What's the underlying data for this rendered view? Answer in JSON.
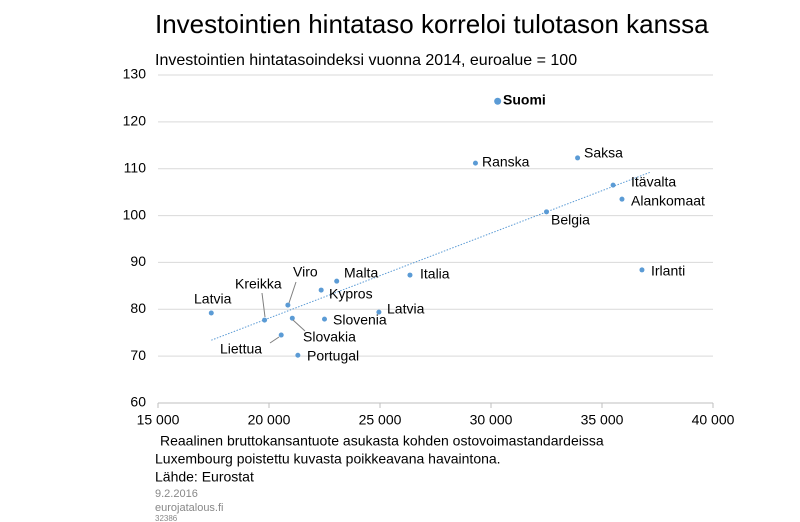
{
  "chart_data": {
    "type": "scatter",
    "title": "Investointien hintataso korreloi tulotason kanssa",
    "subtitle": "Investointien hintatasoindeksi vuonna 2014, euroalue = 100",
    "x_label": "Reaalinen bruttokansantuote asukasta kohden ostovoimastandardeissa",
    "notes": [
      "Luxembourg poistettu kuvasta poikkeavana havaintona.",
      "Lähde: Eurostat"
    ],
    "date": "9.2.2016",
    "site": "eurojatalous.fi",
    "code": "32386",
    "color": "#5b9bd5",
    "labels": [
      "Suomi",
      "Ranska",
      "Saksa",
      "Itävalta",
      "Alankomaat",
      "Belgia",
      "Irlanti",
      "Italia",
      "Malta",
      "Kypros",
      "Viro",
      "Latvia",
      "Kreikka",
      "Slovakia",
      "Slovenia",
      "Latvia",
      "Liettua",
      "Portugal"
    ],
    "bold_labels": [
      true,
      false,
      false,
      false,
      false,
      false,
      false,
      false,
      false,
      false,
      false,
      false,
      false,
      false,
      false,
      false,
      false,
      false
    ],
    "x": [
      30300,
      29300,
      33900,
      35500,
      35900,
      32500,
      36800,
      26350,
      23050,
      22350,
      20850,
      17400,
      19800,
      21050,
      22500,
      24950,
      20550,
      21300
    ],
    "values": [
      124.4,
      111.2,
      112.3,
      106.5,
      103.5,
      100.8,
      88.4,
      87.3,
      86.0,
      84.1,
      80.9,
      79.2,
      77.7,
      78.1,
      77.9,
      79.4,
      74.5,
      70.2
    ],
    "trendline": {
      "x": [
        17400,
        37200
      ],
      "y": [
        73.4,
        109.3
      ]
    },
    "xlim": [
      15000,
      40000
    ],
    "xticks": [
      {
        "value": 15000,
        "label": "15 000"
      },
      {
        "value": 20000,
        "label": "20 000"
      },
      {
        "value": 25000,
        "label": "25 000"
      },
      {
        "value": 30000,
        "label": "30 000"
      },
      {
        "value": 35000,
        "label": "35 000"
      },
      {
        "value": 40000,
        "label": "40 000"
      }
    ],
    "ylim": [
      60,
      130
    ],
    "yticks": [
      60,
      70,
      80,
      90,
      100,
      110,
      120,
      130
    ],
    "grid": true
  }
}
